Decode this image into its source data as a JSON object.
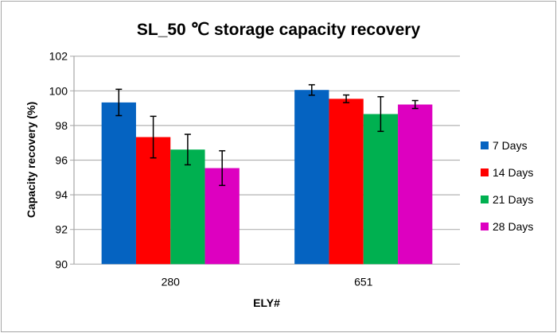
{
  "chart_data": {
    "type": "bar",
    "title": "SL_50 ℃ storage capacity recovery",
    "xlabel": "ELY#",
    "ylabel": "Capacity recovery  (%)",
    "ylim": [
      90,
      102
    ],
    "yticks": [
      90,
      92,
      94,
      96,
      98,
      100,
      102
    ],
    "grid": true,
    "legend_position": "right",
    "categories": [
      "280",
      "651"
    ],
    "series": [
      {
        "name": "7 Days",
        "color": "#0563C1",
        "values": [
          99.33,
          100.05
        ],
        "errors": [
          0.76,
          0.3
        ]
      },
      {
        "name": "14 Days",
        "color": "#FF0000",
        "values": [
          97.33,
          99.54
        ],
        "errors": [
          1.2,
          0.22
        ]
      },
      {
        "name": "21 Days",
        "color": "#00B050",
        "values": [
          96.61,
          98.66
        ],
        "errors": [
          0.88,
          1.0
        ]
      },
      {
        "name": "28 Days",
        "color": "#DD00C0",
        "values": [
          95.54,
          99.21
        ],
        "errors": [
          1.0,
          0.23
        ]
      }
    ]
  }
}
